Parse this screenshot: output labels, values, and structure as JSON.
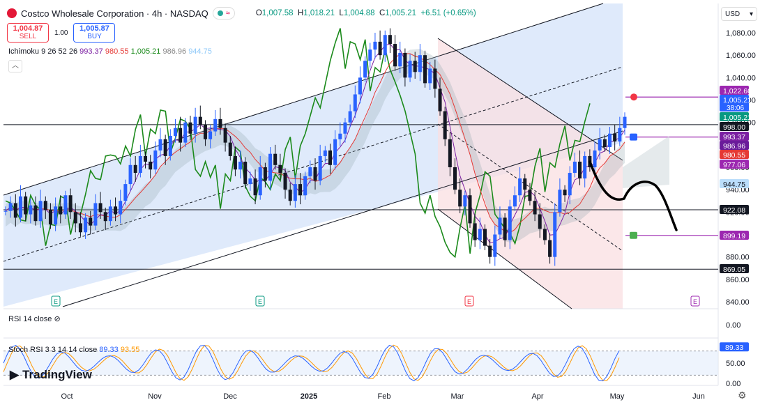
{
  "header": {
    "symbol": "Costco Wholesale Corporation · 4h · NASDAQ",
    "flag_icon": "costco-logo",
    "ohlc": {
      "o_label": "O",
      "o": "1,007.58",
      "h_label": "H",
      "h": "1,018.21",
      "l_label": "L",
      "l": "1,004.88",
      "c_label": "C",
      "c": "1,005.21",
      "change": "+6.51 (+0.65%)"
    }
  },
  "trade": {
    "sell_price": "1,004.87",
    "sell_label": "SELL",
    "spread": "1.00",
    "buy_price": "1,005.87",
    "buy_label": "BUY"
  },
  "ichimoku": {
    "name": "Ichimoku 9 26 52 26",
    "v1": "993.37",
    "v2": "980.55",
    "v3": "1,005.21",
    "v4": "986.96",
    "v5": "944.75"
  },
  "rsi": {
    "label": "RSI 14 close"
  },
  "stoch": {
    "label": "Stoch RSI 3 3 14 14 close",
    "k": "89.33",
    "d": "93.55"
  },
  "currency": "USD",
  "brand": "TradingView",
  "colors": {
    "up": "#2962ff",
    "down": "#131722",
    "channel": "#2962ff",
    "red_zone": "#f23645",
    "green": "#1b8a1b",
    "kijun": "#e53935",
    "purple": "#7b1fa2",
    "cloud": "#90a4ae"
  },
  "chart_data": {
    "type": "line",
    "title": "",
    "ylim": [
      830,
      1090
    ],
    "price_ticks": [
      "1,080.00",
      "1,060.00",
      "1,040.00",
      "1,020.00",
      "1,000.00",
      "980.00",
      "960.00",
      "940.00",
      "920.00",
      "900.00",
      "880.00",
      "860.00",
      "840.00"
    ],
    "x_ticks": [
      "Oct",
      "Nov",
      "Dec",
      "2025",
      "Feb",
      "Mar",
      "Apr",
      "May",
      "Jun"
    ],
    "price_labels": [
      {
        "value": 1022.66,
        "text": "1,022.66",
        "color": "#9c27b0"
      },
      {
        "value": 1005.21,
        "text": "1,005.21",
        "color": "#2962ff",
        "sub": "38:06"
      },
      {
        "value": 1005.21,
        "text": "1,005.21",
        "color": "#089981"
      },
      {
        "value": 998.0,
        "text": "998.00",
        "color": "#131722"
      },
      {
        "value": 993.37,
        "text": "993.37",
        "color": "#7b1fa2"
      },
      {
        "value": 986.96,
        "text": "986.96",
        "color": "#6a1b9a"
      },
      {
        "value": 980.55,
        "text": "980.55",
        "color": "#e53935"
      },
      {
        "value": 977.06,
        "text": "977.06",
        "color": "#9c27b0"
      },
      {
        "value": 944.75,
        "text": "944.75",
        "color": "#bbdefb",
        "textcolor": "#131722"
      },
      {
        "value": 922.08,
        "text": "922.08",
        "color": "#131722"
      },
      {
        "value": 899.19,
        "text": "899.19",
        "color": "#9c27b0"
      },
      {
        "value": 869.05,
        "text": "869.05",
        "color": "#131722"
      }
    ],
    "horizontal_levels": [
      998.0,
      922.08,
      869.05
    ],
    "close_series": [
      921,
      928,
      915,
      934,
      918,
      926,
      912,
      930,
      922,
      909,
      925,
      918,
      935,
      920,
      910,
      902,
      915,
      908,
      928,
      920,
      912,
      925,
      918,
      930,
      945,
      962,
      955,
      970,
      965,
      958,
      975,
      985,
      970,
      988,
      995,
      982,
      1000,
      990,
      1005,
      998,
      985,
      992,
      1003,
      995,
      982,
      970,
      958,
      965,
      945,
      950,
      935,
      960,
      948,
      972,
      962,
      955,
      940,
      930,
      945,
      935,
      952,
      960,
      948,
      970,
      975,
      962,
      985,
      990,
      1000,
      1010,
      1025,
      1040,
      1055,
      1065,
      1072,
      1060,
      1078,
      1070,
      1050,
      1062,
      1040,
      1055,
      1045,
      1060,
      1035,
      1048,
      1030,
      1010,
      985,
      960,
      940,
      925,
      935,
      910,
      895,
      905,
      890,
      880,
      900,
      915,
      895,
      925,
      935,
      950,
      940,
      930,
      918,
      905,
      895,
      880,
      920,
      940,
      935,
      955,
      965,
      950,
      970,
      960,
      975,
      985,
      978,
      990,
      983,
      995,
      1005
    ],
    "rsi": {
      "ticks": [
        "0.00"
      ]
    },
    "stoch_rsi": {
      "ticks": [
        "50.00",
        "0.00"
      ],
      "k_last": 89.33,
      "d_last": 93.55
    },
    "earnings_markers": [
      {
        "label": "E",
        "color": "#089981"
      },
      {
        "label": "E",
        "color": "#089981"
      },
      {
        "label": "E",
        "color": "#f23645"
      },
      {
        "label": "E",
        "color": "#9c27b0"
      }
    ]
  }
}
